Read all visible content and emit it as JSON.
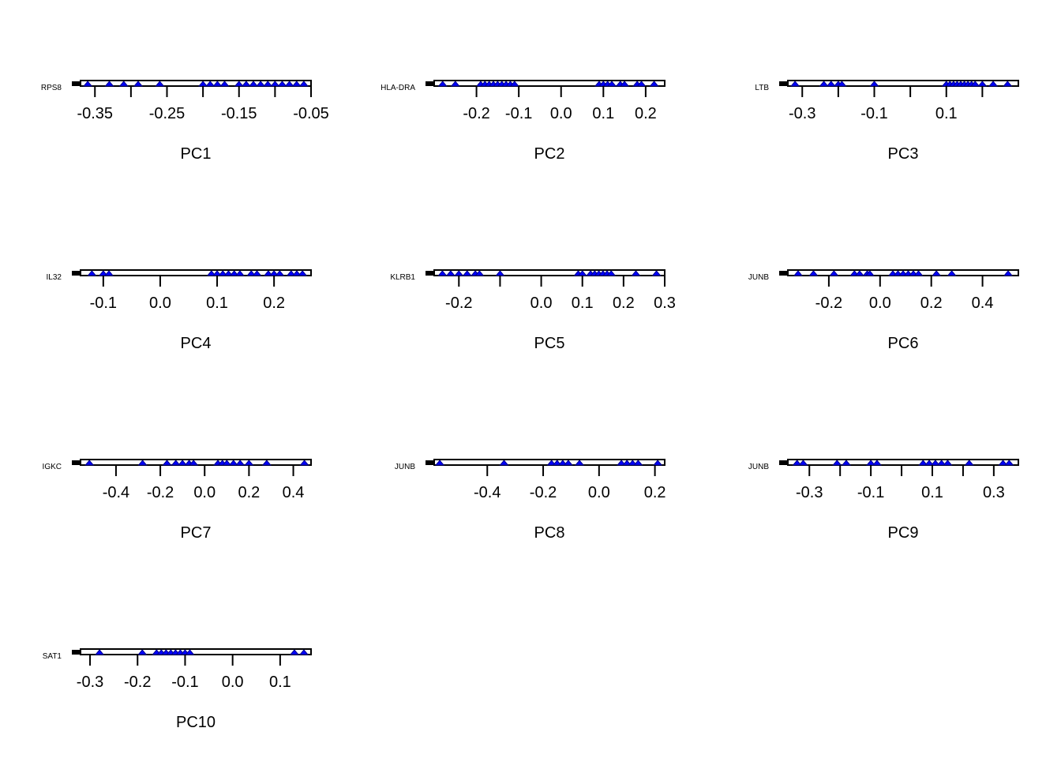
{
  "figure": {
    "background": "#ffffff",
    "point_color": "#0000ff",
    "point_stroke": "#00008b",
    "axis_color": "#000000"
  },
  "chart_data": [
    {
      "type": "scatter",
      "xlabel": "PC1",
      "gene_label": "RPS8",
      "xlim": [
        -0.37,
        -0.05
      ],
      "ticks": [
        -0.35,
        -0.3,
        -0.25,
        -0.2,
        -0.15,
        -0.1,
        -0.05
      ],
      "tick_labels": [
        "-0.35",
        "",
        "-0.25",
        "",
        "-0.15",
        "",
        "-0.05"
      ],
      "x": [
        -0.36,
        -0.33,
        -0.31,
        -0.29,
        -0.26,
        -0.2,
        -0.19,
        -0.18,
        -0.17,
        -0.15,
        -0.14,
        -0.13,
        -0.12,
        -0.11,
        -0.1,
        -0.09,
        -0.08,
        -0.07,
        -0.06
      ]
    },
    {
      "type": "scatter",
      "xlabel": "PC2",
      "gene_label": "HLA-DRA",
      "xlim": [
        -0.3,
        0.245
      ],
      "ticks": [
        -0.2,
        -0.1,
        0.0,
        0.1,
        0.2
      ],
      "tick_labels": [
        "-0.2",
        "-0.1",
        "0.0",
        "0.1",
        "0.2"
      ],
      "x": [
        -0.28,
        -0.25,
        -0.19,
        -0.18,
        -0.17,
        -0.16,
        -0.15,
        -0.14,
        -0.13,
        -0.12,
        -0.11,
        0.09,
        0.1,
        0.11,
        0.12,
        0.14,
        0.15,
        0.18,
        0.19,
        0.22
      ]
    },
    {
      "type": "scatter",
      "xlabel": "PC3",
      "gene_label": "LTB",
      "xlim": [
        -0.34,
        0.3
      ],
      "ticks": [
        -0.3,
        -0.2,
        -0.1,
        0.0,
        0.1,
        0.2
      ],
      "tick_labels": [
        "-0.3",
        "",
        "-0.1",
        "",
        "0.1",
        ""
      ],
      "x": [
        -0.32,
        -0.24,
        -0.22,
        -0.2,
        -0.19,
        -0.1,
        0.1,
        0.11,
        0.12,
        0.13,
        0.14,
        0.15,
        0.16,
        0.17,
        0.18,
        0.2,
        0.23,
        0.27
      ]
    },
    {
      "type": "scatter",
      "xlabel": "PC4",
      "gene_label": "IL32",
      "xlim": [
        -0.14,
        0.265
      ],
      "ticks": [
        -0.1,
        0.0,
        0.1,
        0.2
      ],
      "tick_labels": [
        "-0.1",
        "0.0",
        "0.1",
        "0.2"
      ],
      "x": [
        -0.12,
        -0.1,
        -0.09,
        0.09,
        0.1,
        0.11,
        0.12,
        0.13,
        0.14,
        0.16,
        0.17,
        0.19,
        0.2,
        0.21,
        0.23,
        0.24,
        0.25
      ]
    },
    {
      "type": "scatter",
      "xlabel": "PC5",
      "gene_label": "KLRB1",
      "xlim": [
        -0.26,
        0.3
      ],
      "ticks": [
        -0.2,
        -0.1,
        0.0,
        0.1,
        0.2,
        0.3
      ],
      "tick_labels": [
        "-0.2",
        "",
        "0.0",
        "0.1",
        "0.2",
        "0.3"
      ],
      "x": [
        -0.24,
        -0.22,
        -0.2,
        -0.18,
        -0.16,
        -0.15,
        -0.1,
        0.09,
        0.1,
        0.12,
        0.13,
        0.14,
        0.15,
        0.16,
        0.17,
        0.23,
        0.28
      ]
    },
    {
      "type": "scatter",
      "xlabel": "PC6",
      "gene_label": "JUNB",
      "xlim": [
        -0.36,
        0.54
      ],
      "ticks": [
        -0.2,
        0.0,
        0.2,
        0.4
      ],
      "tick_labels": [
        "-0.2",
        "0.0",
        "0.2",
        "0.4"
      ],
      "x": [
        -0.32,
        -0.26,
        -0.18,
        -0.1,
        -0.08,
        -0.05,
        -0.04,
        0.05,
        0.07,
        0.09,
        0.11,
        0.13,
        0.15,
        0.22,
        0.28,
        0.5
      ]
    },
    {
      "type": "scatter",
      "xlabel": "PC7",
      "gene_label": "IGKC",
      "xlim": [
        -0.56,
        0.48
      ],
      "ticks": [
        -0.4,
        -0.2,
        0.0,
        0.2,
        0.4
      ],
      "tick_labels": [
        "-0.4",
        "-0.2",
        "0.0",
        "0.2",
        "0.4"
      ],
      "x": [
        -0.52,
        -0.28,
        -0.17,
        -0.13,
        -0.1,
        -0.07,
        -0.05,
        0.06,
        0.08,
        0.1,
        0.13,
        0.16,
        0.2,
        0.28,
        0.45
      ]
    },
    {
      "type": "scatter",
      "xlabel": "PC8",
      "gene_label": "JUNB",
      "xlim": [
        -0.59,
        0.235
      ],
      "ticks": [
        -0.4,
        -0.2,
        0.0,
        0.2
      ],
      "tick_labels": [
        "-0.4",
        "-0.2",
        "0.0",
        "0.2"
      ],
      "x": [
        -0.57,
        -0.34,
        -0.17,
        -0.15,
        -0.13,
        -0.11,
        -0.07,
        0.08,
        0.1,
        0.12,
        0.14,
        0.21
      ]
    },
    {
      "type": "scatter",
      "xlabel": "PC9",
      "gene_label": "JUNB",
      "xlim": [
        -0.37,
        0.38
      ],
      "ticks": [
        -0.3,
        -0.2,
        -0.1,
        0.0,
        0.1,
        0.2,
        0.3
      ],
      "tick_labels": [
        "-0.3",
        "",
        "-0.1",
        "",
        "0.1",
        "",
        "0.3"
      ],
      "x": [
        -0.34,
        -0.32,
        -0.21,
        -0.18,
        -0.1,
        -0.08,
        0.07,
        0.09,
        0.11,
        0.13,
        0.15,
        0.22,
        0.33,
        0.35
      ]
    },
    {
      "type": "scatter",
      "xlabel": "PC10",
      "gene_label": "SAT1",
      "xlim": [
        -0.32,
        0.165
      ],
      "ticks": [
        -0.3,
        -0.2,
        -0.1,
        0.0,
        0.1
      ],
      "tick_labels": [
        "-0.3",
        "-0.2",
        "-0.1",
        "0.0",
        "0.1"
      ],
      "x": [
        -0.28,
        -0.19,
        -0.16,
        -0.15,
        -0.14,
        -0.13,
        -0.12,
        -0.11,
        -0.1,
        -0.09,
        0.13,
        0.15
      ]
    }
  ]
}
